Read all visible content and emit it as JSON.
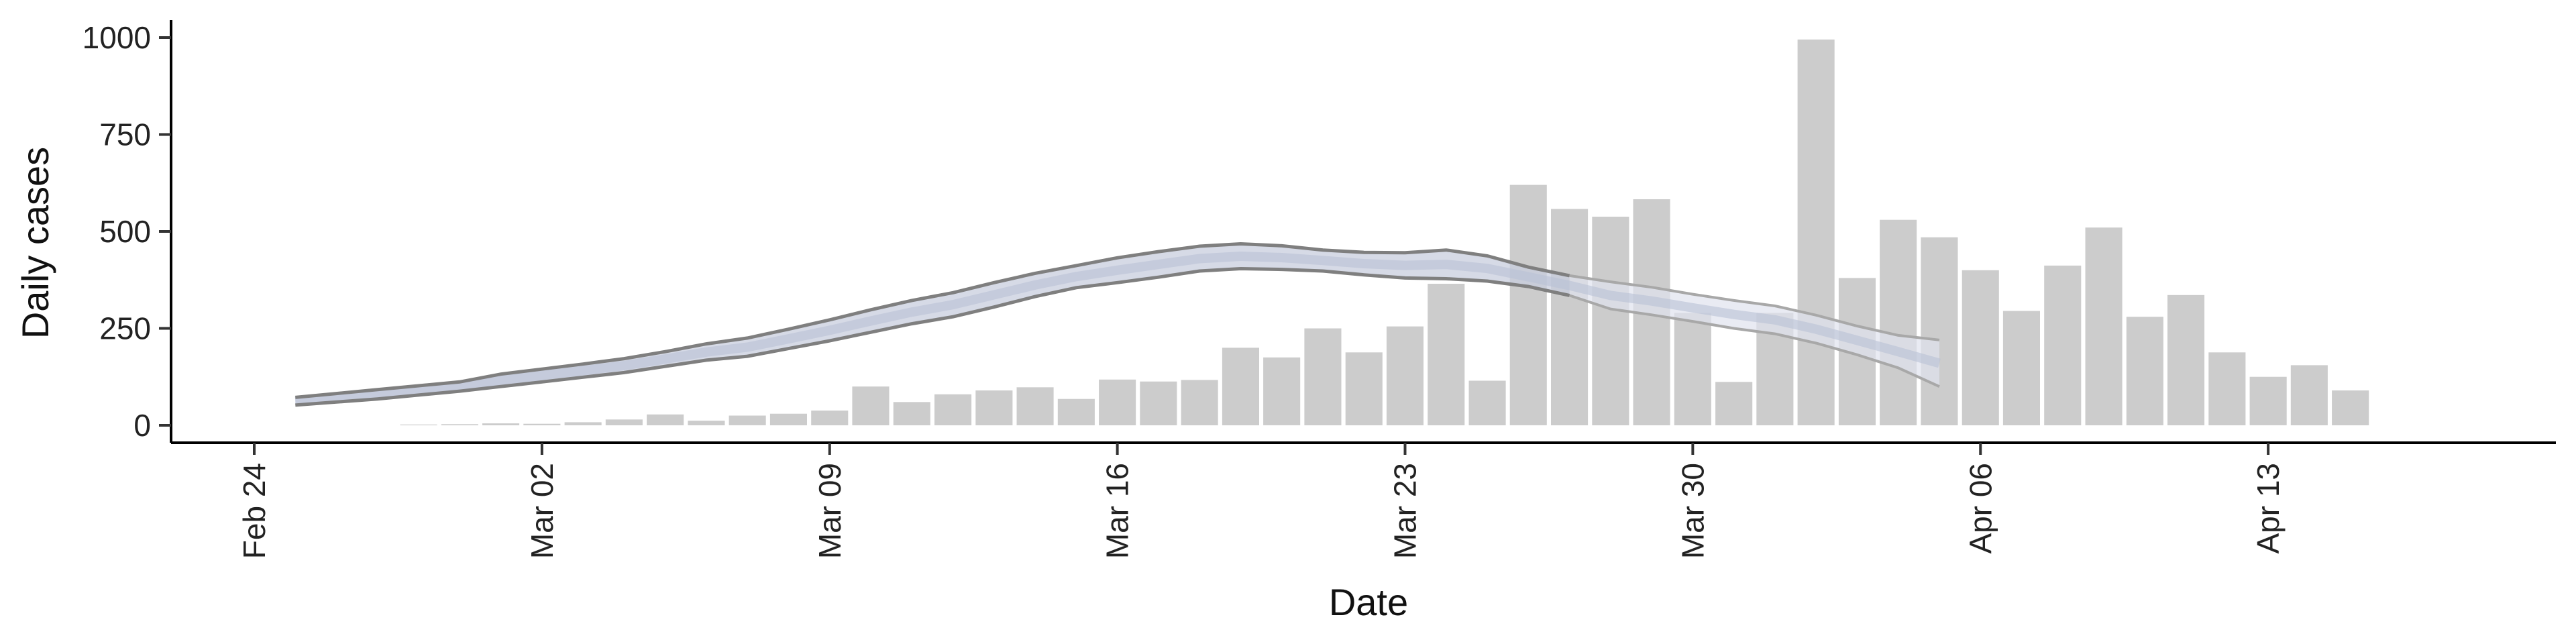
{
  "chart_data": {
    "type": "bar",
    "title": "",
    "xlabel": "Date",
    "ylabel": "Daily cases",
    "x_ticks": [
      "Feb 24",
      "Mar 02",
      "Mar 09",
      "Mar 16",
      "Mar 23",
      "Mar 30",
      "Apr 06",
      "Apr 13"
    ],
    "y_ticks": [
      "0",
      "250",
      "500",
      "750",
      "1000"
    ],
    "xlim": [
      "2020-02-24",
      "2020-04-20"
    ],
    "ylim": [
      -45,
      1045
    ],
    "grid": false,
    "colors": {
      "bars": "#cccccc",
      "band_outline": "#7f7f7f",
      "band_fill": "#c8cdde",
      "projection_fill": "#dfe3ee"
    },
    "bars": {
      "start_date": "2020-02-28",
      "values": [
        2,
        3,
        5,
        4,
        8,
        15,
        28,
        12,
        25,
        30,
        38,
        100,
        60,
        80,
        90,
        98,
        68,
        118,
        113,
        117,
        200,
        175,
        250,
        188,
        255,
        365,
        115,
        620,
        558,
        538,
        583,
        290,
        112,
        290,
        995,
        380,
        530,
        485,
        400,
        295,
        412,
        510,
        280,
        336,
        188,
        125,
        155,
        90
      ]
    },
    "estimate_band": {
      "start_date": "2020-02-25",
      "upper": [
        72,
        82,
        92,
        102,
        112,
        132,
        145,
        158,
        172,
        190,
        210,
        225,
        248,
        272,
        298,
        322,
        342,
        368,
        392,
        412,
        432,
        448,
        462,
        468,
        463,
        452,
        446,
        445,
        452,
        437,
        408,
        386,
        370,
        356,
        338,
        322,
        308,
        284,
        256,
        232,
        220
      ],
      "lower": [
        52,
        60,
        68,
        78,
        88,
        100,
        112,
        124,
        136,
        152,
        168,
        178,
        198,
        218,
        240,
        262,
        280,
        305,
        332,
        355,
        368,
        382,
        398,
        404,
        402,
        398,
        388,
        380,
        378,
        372,
        358,
        335,
        300,
        285,
        268,
        250,
        236,
        212,
        182,
        148,
        100
      ]
    }
  }
}
